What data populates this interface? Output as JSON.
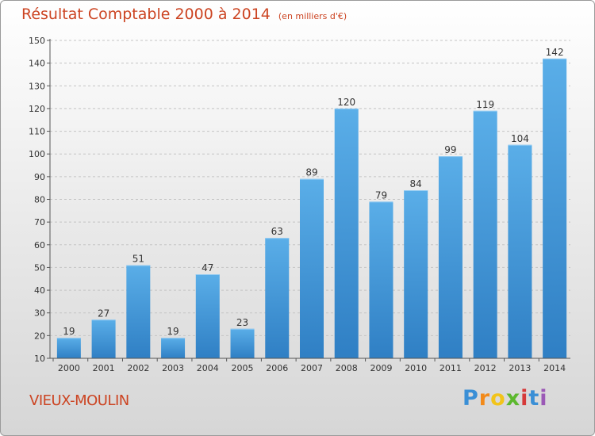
{
  "title": "Résultat Comptable 2000 à 2014",
  "subtitle": "(en milliers d'€)",
  "commune": "VIEUX-MOULIN",
  "logo": {
    "letters": [
      "P",
      "r",
      "o",
      "x",
      "i",
      "t",
      "i"
    ],
    "colors": [
      "#3a8fd6",
      "#f28a1a",
      "#f2c41a",
      "#5cb82e",
      "#d63a3a",
      "#3a8fd6",
      "#9b59b6"
    ]
  },
  "colors": {
    "bar_top": "#5aaee8",
    "bar_bottom": "#2f7fc4",
    "text": "#cc4422"
  },
  "chart_data": {
    "type": "bar",
    "categories": [
      "2000",
      "2001",
      "2002",
      "2003",
      "2004",
      "2005",
      "2006",
      "2007",
      "2008",
      "2009",
      "2010",
      "2011",
      "2012",
      "2013",
      "2014"
    ],
    "values": [
      19,
      27,
      51,
      19,
      47,
      23,
      63,
      89,
      120,
      79,
      84,
      99,
      119,
      104,
      142
    ],
    "ylim": [
      10,
      150
    ],
    "yticks": [
      10,
      20,
      30,
      40,
      50,
      60,
      70,
      80,
      90,
      100,
      110,
      120,
      130,
      140,
      150
    ],
    "grid": true,
    "data_labels": true
  }
}
